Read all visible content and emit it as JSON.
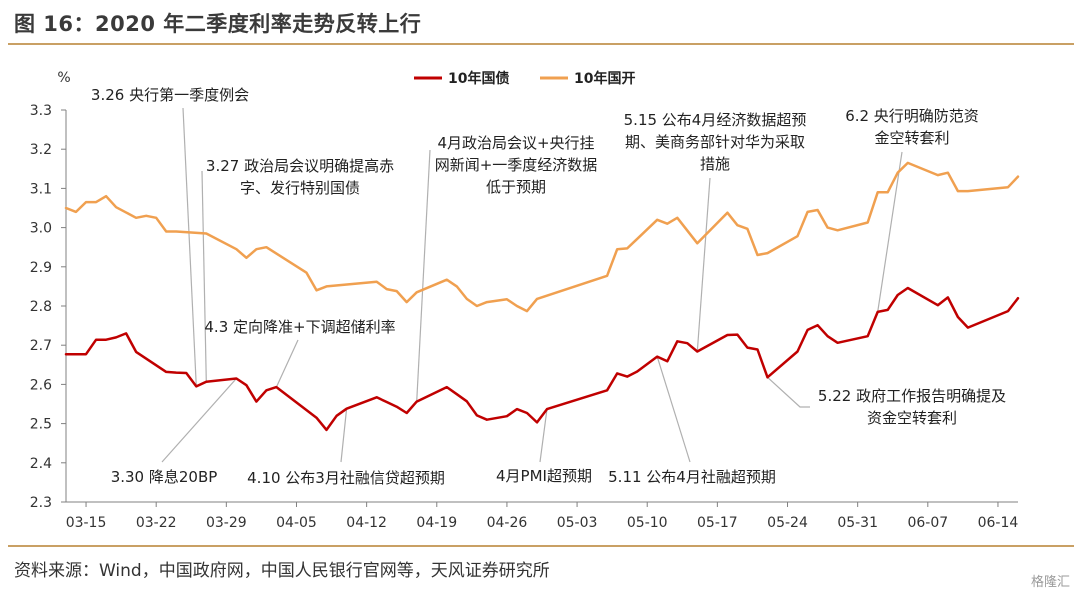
{
  "figure": {
    "title": "图 16：2020 年二季度利率走势反转上行",
    "source": "资料来源：Wind，中国政府网，中国人民银行官网等，天风证券研究所",
    "watermark": "格隆汇"
  },
  "chart_data": {
    "type": "line",
    "ylabel": "%",
    "ylim": [
      2.3,
      3.3
    ],
    "y_ticks": [
      2.3,
      2.4,
      2.5,
      2.6,
      2.7,
      2.8,
      2.9,
      3.0,
      3.1,
      3.2,
      3.3
    ],
    "x_range": [
      "2020-03-13",
      "2020-06-16"
    ],
    "x_ticks": [
      {
        "date": "2020-03-15",
        "label": "03-15"
      },
      {
        "date": "2020-03-22",
        "label": "03-22"
      },
      {
        "date": "2020-03-29",
        "label": "03-29"
      },
      {
        "date": "2020-04-05",
        "label": "04-05"
      },
      {
        "date": "2020-04-12",
        "label": "04-12"
      },
      {
        "date": "2020-04-19",
        "label": "04-19"
      },
      {
        "date": "2020-04-26",
        "label": "04-26"
      },
      {
        "date": "2020-05-03",
        "label": "05-03"
      },
      {
        "date": "2020-05-10",
        "label": "05-10"
      },
      {
        "date": "2020-05-17",
        "label": "05-17"
      },
      {
        "date": "2020-05-24",
        "label": "05-24"
      },
      {
        "date": "2020-05-31",
        "label": "05-31"
      },
      {
        "date": "2020-06-07",
        "label": "06-07"
      },
      {
        "date": "2020-06-14",
        "label": "06-14"
      }
    ],
    "grid": false,
    "legend": "top-center",
    "colors": {
      "10年国债": "#c00000",
      "10年国开": "#f0a050",
      "annotation_line": "#b0b0b0",
      "axis": "#808080"
    },
    "series": [
      {
        "name": "10年国债",
        "points": [
          [
            "2020-03-13",
            2.677
          ],
          [
            "2020-03-14",
            2.677
          ],
          [
            "2020-03-15",
            2.677
          ],
          [
            "2020-03-16",
            2.714
          ],
          [
            "2020-03-17",
            2.714
          ],
          [
            "2020-03-18",
            2.72
          ],
          [
            "2020-03-19",
            2.73
          ],
          [
            "2020-03-20",
            2.683
          ],
          [
            "2020-03-23",
            2.632
          ],
          [
            "2020-03-24",
            2.63
          ],
          [
            "2020-03-25",
            2.629
          ],
          [
            "2020-03-26",
            2.595
          ],
          [
            "2020-03-27",
            2.607
          ],
          [
            "2020-03-30",
            2.615
          ],
          [
            "2020-03-31",
            2.598
          ],
          [
            "2020-04-01",
            2.556
          ],
          [
            "2020-04-02",
            2.585
          ],
          [
            "2020-04-03",
            2.593
          ],
          [
            "2020-04-07",
            2.515
          ],
          [
            "2020-04-08",
            2.484
          ],
          [
            "2020-04-09",
            2.52
          ],
          [
            "2020-04-10",
            2.538
          ],
          [
            "2020-04-13",
            2.567
          ],
          [
            "2020-04-14",
            2.555
          ],
          [
            "2020-04-15",
            2.543
          ],
          [
            "2020-04-16",
            2.527
          ],
          [
            "2020-04-17",
            2.556
          ],
          [
            "2020-04-20",
            2.593
          ],
          [
            "2020-04-21",
            2.575
          ],
          [
            "2020-04-22",
            2.557
          ],
          [
            "2020-04-23",
            2.521
          ],
          [
            "2020-04-24",
            2.51
          ],
          [
            "2020-04-26",
            2.519
          ],
          [
            "2020-04-27",
            2.537
          ],
          [
            "2020-04-28",
            2.527
          ],
          [
            "2020-04-29",
            2.503
          ],
          [
            "2020-04-30",
            2.537
          ],
          [
            "2020-05-06",
            2.585
          ],
          [
            "2020-05-07",
            2.628
          ],
          [
            "2020-05-08",
            2.62
          ],
          [
            "2020-05-09",
            2.633
          ],
          [
            "2020-05-11",
            2.671
          ],
          [
            "2020-05-12",
            2.659
          ],
          [
            "2020-05-13",
            2.71
          ],
          [
            "2020-05-14",
            2.705
          ],
          [
            "2020-05-15",
            2.684
          ],
          [
            "2020-05-18",
            2.726
          ],
          [
            "2020-05-19",
            2.727
          ],
          [
            "2020-05-20",
            2.694
          ],
          [
            "2020-05-21",
            2.689
          ],
          [
            "2020-05-22",
            2.618
          ],
          [
            "2020-05-25",
            2.684
          ],
          [
            "2020-05-26",
            2.739
          ],
          [
            "2020-05-27",
            2.751
          ],
          [
            "2020-05-28",
            2.723
          ],
          [
            "2020-05-29",
            2.706
          ],
          [
            "2020-06-01",
            2.723
          ],
          [
            "2020-06-02",
            2.785
          ],
          [
            "2020-06-03",
            2.79
          ],
          [
            "2020-06-04",
            2.828
          ],
          [
            "2020-06-05",
            2.846
          ],
          [
            "2020-06-08",
            2.802
          ],
          [
            "2020-06-09",
            2.822
          ],
          [
            "2020-06-10",
            2.772
          ],
          [
            "2020-06-11",
            2.745
          ],
          [
            "2020-06-15",
            2.787
          ],
          [
            "2020-06-16",
            2.82
          ]
        ]
      },
      {
        "name": "10年国开",
        "points": [
          [
            "2020-03-13",
            3.05
          ],
          [
            "2020-03-14",
            3.04
          ],
          [
            "2020-03-15",
            3.065
          ],
          [
            "2020-03-16",
            3.065
          ],
          [
            "2020-03-17",
            3.08
          ],
          [
            "2020-03-18",
            3.052
          ],
          [
            "2020-03-20",
            3.025
          ],
          [
            "2020-03-21",
            3.03
          ],
          [
            "2020-03-22",
            3.025
          ],
          [
            "2020-03-23",
            2.99
          ],
          [
            "2020-03-24",
            2.99
          ],
          [
            "2020-03-27",
            2.985
          ],
          [
            "2020-03-30",
            2.945
          ],
          [
            "2020-03-31",
            2.923
          ],
          [
            "2020-04-01",
            2.945
          ],
          [
            "2020-04-02",
            2.95
          ],
          [
            "2020-04-06",
            2.885
          ],
          [
            "2020-04-07",
            2.84
          ],
          [
            "2020-04-08",
            2.85
          ],
          [
            "2020-04-13",
            2.862
          ],
          [
            "2020-04-14",
            2.843
          ],
          [
            "2020-04-15",
            2.838
          ],
          [
            "2020-04-16",
            2.81
          ],
          [
            "2020-04-17",
            2.835
          ],
          [
            "2020-04-20",
            2.867
          ],
          [
            "2020-04-21",
            2.85
          ],
          [
            "2020-04-22",
            2.818
          ],
          [
            "2020-04-23",
            2.8
          ],
          [
            "2020-04-24",
            2.81
          ],
          [
            "2020-04-26",
            2.817
          ],
          [
            "2020-04-27",
            2.8
          ],
          [
            "2020-04-28",
            2.787
          ],
          [
            "2020-04-29",
            2.818
          ],
          [
            "2020-05-06",
            2.877
          ],
          [
            "2020-05-07",
            2.945
          ],
          [
            "2020-05-08",
            2.947
          ],
          [
            "2020-05-11",
            3.02
          ],
          [
            "2020-05-12",
            3.01
          ],
          [
            "2020-05-13",
            3.025
          ],
          [
            "2020-05-15",
            2.96
          ],
          [
            "2020-05-18",
            3.038
          ],
          [
            "2020-05-19",
            3.006
          ],
          [
            "2020-05-20",
            2.997
          ],
          [
            "2020-05-21",
            2.93
          ],
          [
            "2020-05-22",
            2.935
          ],
          [
            "2020-05-25",
            2.978
          ],
          [
            "2020-05-26",
            3.04
          ],
          [
            "2020-05-27",
            3.045
          ],
          [
            "2020-05-28",
            3.0
          ],
          [
            "2020-05-29",
            2.993
          ],
          [
            "2020-06-01",
            3.013
          ],
          [
            "2020-06-02",
            3.09
          ],
          [
            "2020-06-03",
            3.09
          ],
          [
            "2020-06-04",
            3.14
          ],
          [
            "2020-06-05",
            3.165
          ],
          [
            "2020-06-08",
            3.134
          ],
          [
            "2020-06-09",
            3.14
          ],
          [
            "2020-06-10",
            3.093
          ],
          [
            "2020-06-11",
            3.093
          ],
          [
            "2020-06-15",
            3.103
          ],
          [
            "2020-06-16",
            3.13
          ]
        ]
      }
    ],
    "annotations": [
      {
        "id": "a1",
        "lines": [
          "3.26 央行第一季度例会"
        ],
        "point": [
          "2020-03-26",
          2.595
        ]
      },
      {
        "id": "a2",
        "lines": [
          "3.27 政治局会议明确提高赤",
          "字、发行特别国债"
        ],
        "point": [
          "2020-03-27",
          2.607
        ]
      },
      {
        "id": "a3",
        "lines": [
          "3.30 降息20BP"
        ],
        "point": [
          "2020-03-30",
          2.615
        ]
      },
      {
        "id": "a4",
        "lines": [
          "4.3 定向降准+下调超储利率"
        ],
        "point": [
          "2020-04-03",
          2.593
        ]
      },
      {
        "id": "a5",
        "lines": [
          "4.10 公布3月社融信贷超预期"
        ],
        "point": [
          "2020-04-10",
          2.538
        ]
      },
      {
        "id": "a6",
        "lines": [
          "4月政治局会议+央行挂",
          "网新闻+一季度经济数据",
          "低于预期"
        ],
        "point": [
          "2020-04-17",
          2.556
        ]
      },
      {
        "id": "a7",
        "lines": [
          "4月PMI超预期"
        ],
        "point": [
          "2020-04-30",
          2.537
        ]
      },
      {
        "id": "a8",
        "lines": [
          "5.11 公布4月社融超预期"
        ],
        "point": [
          "2020-05-11",
          2.671
        ]
      },
      {
        "id": "a9",
        "lines": [
          "5.15 公布4月经济数据超预",
          "期、美商务部针对华为采取",
          "措施"
        ],
        "point": [
          "2020-05-15",
          2.684
        ]
      },
      {
        "id": "a10",
        "lines": [
          "5.22 政府工作报告明确提及",
          "资金空转套利"
        ],
        "point": [
          "2020-05-22",
          2.618
        ]
      },
      {
        "id": "a11",
        "lines": [
          "6.2 央行明确防范资",
          "金空转套利"
        ],
        "point": [
          "2020-06-02",
          2.785
        ]
      }
    ]
  }
}
